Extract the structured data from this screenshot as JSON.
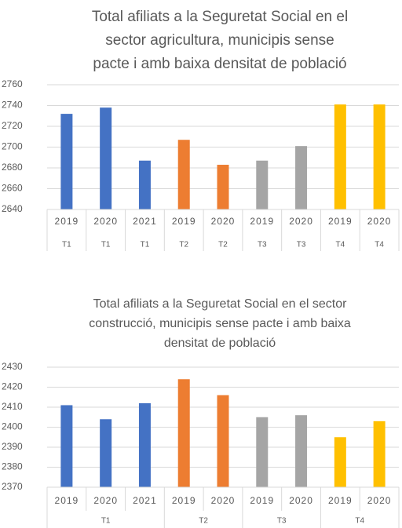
{
  "chart_data": [
    {
      "type": "bar",
      "title": [
        "Total afiliats a la Seguretat Social en el",
        "sector agricultura, municipis sense",
        "pacte i amb baixa densitat de població"
      ],
      "group_label": "per_category",
      "series": [
        {
          "name": "T1",
          "color": "#4472c4",
          "categories": [
            "2019",
            "2020",
            "2021"
          ],
          "values": [
            2732,
            2738,
            2687
          ]
        },
        {
          "name": "T2",
          "color": "#ed7d31",
          "categories": [
            "2019",
            "2020"
          ],
          "values": [
            2707,
            2683
          ]
        },
        {
          "name": "T3",
          "color": "#a5a5a5",
          "categories": [
            "2019",
            "2020"
          ],
          "values": [
            2687,
            2701
          ]
        },
        {
          "name": "T4",
          "color": "#ffc000",
          "categories": [
            "2019",
            "2020"
          ],
          "values": [
            2741,
            2741
          ]
        }
      ],
      "ylim": [
        2640,
        2760
      ],
      "yticks": [
        2640,
        2660,
        2680,
        2700,
        2720,
        2740,
        2760
      ],
      "grid": true
    },
    {
      "type": "bar",
      "title": [
        "Total afiliats a la Seguretat Social en el sector",
        "construcció, municipis sense pacte i amb baixa",
        "densitat de població"
      ],
      "group_label": "per_group",
      "series": [
        {
          "name": "T1",
          "color": "#4472c4",
          "categories": [
            "2019",
            "2020",
            "2021"
          ],
          "values": [
            2411,
            2404,
            2412
          ]
        },
        {
          "name": "T2",
          "color": "#ed7d31",
          "categories": [
            "2019",
            "2020"
          ],
          "values": [
            2424,
            2416
          ]
        },
        {
          "name": "T3",
          "color": "#a5a5a5",
          "categories": [
            "2019",
            "2020"
          ],
          "values": [
            2405,
            2406
          ]
        },
        {
          "name": "T4",
          "color": "#ffc000",
          "categories": [
            "2019",
            "2020"
          ],
          "values": [
            2395,
            2403
          ]
        }
      ],
      "ylim": [
        2370,
        2430
      ],
      "yticks": [
        2370,
        2380,
        2390,
        2400,
        2410,
        2420,
        2430
      ],
      "grid": true
    }
  ]
}
